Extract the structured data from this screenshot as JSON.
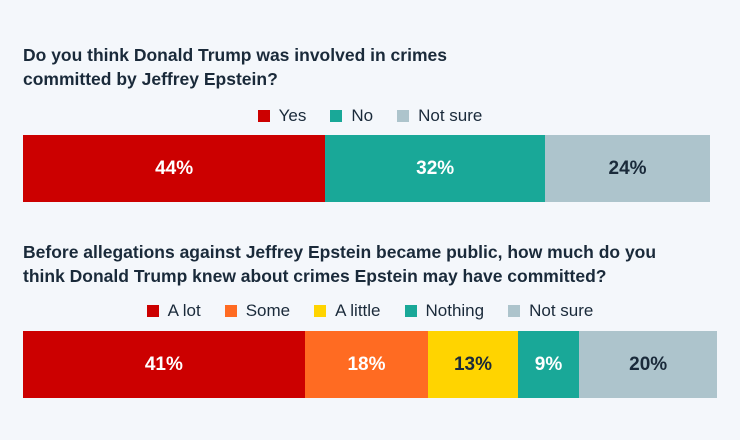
{
  "chart_data": [
    {
      "type": "bar",
      "orientation": "horizontal-stacked",
      "title": "Do you think Donald Trump was involved in crimes committed by Jeffrey Epstein?",
      "title_lines": [
        "Do you think Donald Trump was involved in crimes",
        "committed by Jeffrey Epstein?"
      ],
      "legend_position": "top-center",
      "series": [
        {
          "name": "Yes",
          "value": 44,
          "label": "44%",
          "color": "#cc0000",
          "text_color": "#ffffff"
        },
        {
          "name": "No",
          "value": 32,
          "label": "32%",
          "color": "#19a898",
          "text_color": "#ffffff"
        },
        {
          "name": "Not sure",
          "value": 24,
          "label": "24%",
          "color": "#adc4cc",
          "text_color": "#1a2a3a"
        }
      ]
    },
    {
      "type": "bar",
      "orientation": "horizontal-stacked",
      "title": "Before allegations against Jeffrey Epstein became public, how much do you think Donald Trump knew about crimes Epstein may have committed?",
      "title_lines": [
        "Before allegations against Jeffrey Epstein became public, how much do you",
        "think Donald Trump knew about crimes Epstein may have committed?"
      ],
      "legend_position": "top-center",
      "series": [
        {
          "name": "A lot",
          "value": 41,
          "label": "41%",
          "color": "#cc0000",
          "text_color": "#ffffff"
        },
        {
          "name": "Some",
          "value": 18,
          "label": "18%",
          "color": "#ff6b22",
          "text_color": "#ffffff"
        },
        {
          "name": "A little",
          "value": 13,
          "label": "13%",
          "color": "#ffd400",
          "text_color": "#1a2a3a"
        },
        {
          "name": "Nothing",
          "value": 9,
          "label": "9%",
          "color": "#19a898",
          "text_color": "#ffffff"
        },
        {
          "name": "Not sure",
          "value": 20,
          "label": "20%",
          "color": "#adc4cc",
          "text_color": "#1a2a3a"
        }
      ]
    }
  ]
}
